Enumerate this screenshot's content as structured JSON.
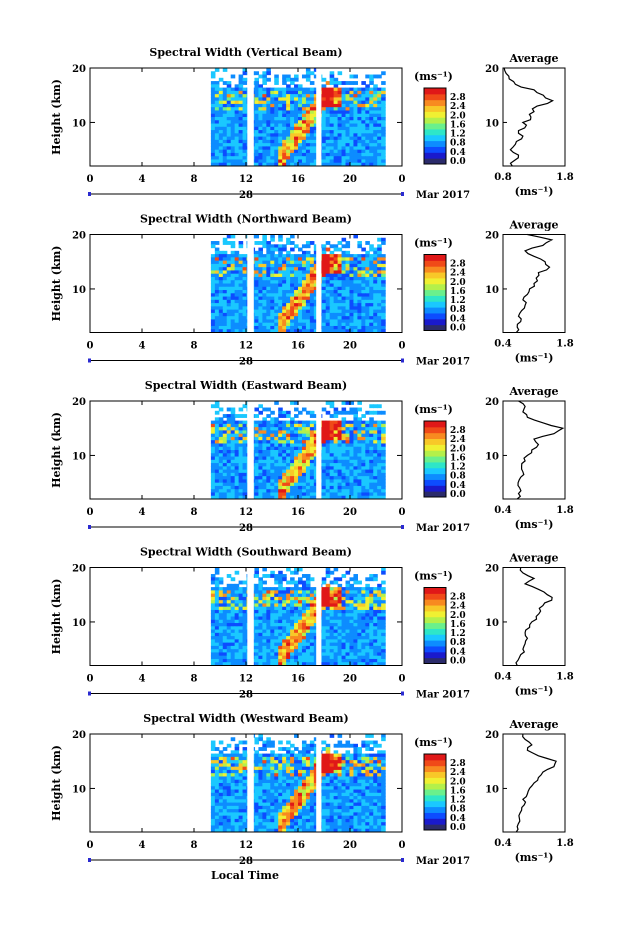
{
  "chart_data": {
    "type": "heatmap",
    "date_label": "Mar 2017",
    "xlabel": "Local Time",
    "day_label": "28",
    "x_ticks": [
      "0",
      "4",
      "8",
      "12",
      "16",
      "20",
      "0"
    ],
    "x_range_hours": [
      0,
      24
    ],
    "data_start_hour": 9.3,
    "data_end_hour": 22.7,
    "gaps_hours": [
      [
        12.1,
        12.6
      ],
      [
        17.4,
        17.8
      ]
    ],
    "ylabel": "Height (km)",
    "y_ticks": [
      "20",
      "10"
    ],
    "y_range_km": [
      2,
      20
    ],
    "colorbar": {
      "unit": "(ms⁻¹)",
      "ticks": [
        "2.8",
        "2.4",
        "2.0",
        "1.6",
        "1.2",
        "0.8",
        "0.4",
        "0.0"
      ],
      "range": [
        0.0,
        2.8
      ],
      "colors": [
        "#2b2b6b",
        "#1a1acc",
        "#0d4cff",
        "#0d8cff",
        "#1ac8ff",
        "#2ee6c8",
        "#6af08c",
        "#b4f04a",
        "#f0f032",
        "#f8c828",
        "#f88a20",
        "#f04a18",
        "#e01818"
      ]
    },
    "profile_title": "Average",
    "profile_xlabel": "(ms⁻¹)",
    "panels": [
      {
        "title": "Spectral Width (Vertical Beam)",
        "profile_xticks": [
          "0.8",
          "1.8"
        ],
        "profile_xrange": [
          0.8,
          1.8
        ],
        "profile": [
          [
            2,
            0.95
          ],
          [
            3,
            0.98
          ],
          [
            4,
            1.05
          ],
          [
            5,
            0.92
          ],
          [
            6,
            1.0
          ],
          [
            7,
            1.1
          ],
          [
            8,
            1.05
          ],
          [
            9,
            1.15
          ],
          [
            10,
            1.12
          ],
          [
            11,
            1.25
          ],
          [
            12,
            1.3
          ],
          [
            13,
            1.35
          ],
          [
            14,
            1.6
          ],
          [
            15,
            1.45
          ],
          [
            16,
            1.3
          ],
          [
            17,
            1.0
          ],
          [
            18,
            0.9
          ],
          [
            19,
            0.85
          ],
          [
            20,
            0.82
          ]
        ]
      },
      {
        "title": "Spectral Width (Northward Beam)",
        "profile_xticks": [
          "0.4",
          "1.8"
        ],
        "profile_xrange": [
          0.4,
          1.8
        ],
        "profile": [
          [
            2,
            0.7
          ],
          [
            3,
            0.72
          ],
          [
            4,
            0.8
          ],
          [
            5,
            0.75
          ],
          [
            6,
            0.82
          ],
          [
            7,
            0.9
          ],
          [
            8,
            0.85
          ],
          [
            9,
            0.95
          ],
          [
            10,
            1.0
          ],
          [
            11,
            1.1
          ],
          [
            12,
            1.15
          ],
          [
            13,
            1.2
          ],
          [
            14,
            1.45
          ],
          [
            15,
            1.35
          ],
          [
            16,
            1.1
          ],
          [
            17,
            0.9
          ],
          [
            18,
            1.3
          ],
          [
            19,
            1.5
          ],
          [
            20,
            0.95
          ]
        ]
      },
      {
        "title": "Spectral Width (Eastward Beam)",
        "profile_xticks": [
          "0.4",
          "1.8"
        ],
        "profile_xrange": [
          0.4,
          1.8
        ],
        "profile": [
          [
            2,
            0.72
          ],
          [
            3,
            0.75
          ],
          [
            4,
            0.78
          ],
          [
            5,
            0.74
          ],
          [
            6,
            0.8
          ],
          [
            7,
            0.85
          ],
          [
            8,
            0.82
          ],
          [
            9,
            0.9
          ],
          [
            10,
            0.95
          ],
          [
            11,
            1.05
          ],
          [
            12,
            1.2
          ],
          [
            13,
            1.1
          ],
          [
            14,
            1.55
          ],
          [
            15,
            1.75
          ],
          [
            16,
            1.3
          ],
          [
            17,
            0.95
          ],
          [
            18,
            0.85
          ],
          [
            19,
            0.9
          ],
          [
            20,
            0.75
          ]
        ]
      },
      {
        "title": "Spectral Width (Southward Beam)",
        "profile_xticks": [
          "0.4",
          "1.8"
        ],
        "profile_xrange": [
          0.4,
          1.8
        ],
        "profile": [
          [
            2,
            0.72
          ],
          [
            3,
            0.74
          ],
          [
            4,
            0.8
          ],
          [
            5,
            0.85
          ],
          [
            6,
            0.9
          ],
          [
            7,
            0.95
          ],
          [
            8,
            0.9
          ],
          [
            9,
            1.0
          ],
          [
            10,
            1.05
          ],
          [
            11,
            1.15
          ],
          [
            12,
            1.25
          ],
          [
            13,
            1.3
          ],
          [
            14,
            1.5
          ],
          [
            15,
            1.4
          ],
          [
            16,
            1.2
          ],
          [
            17,
            0.9
          ],
          [
            18,
            1.1
          ],
          [
            19,
            0.85
          ],
          [
            20,
            0.8
          ]
        ]
      },
      {
        "title": "Spectral Width (Westward Beam)",
        "profile_xticks": [
          "0.4",
          "1.8"
        ],
        "profile_xrange": [
          0.4,
          1.8
        ],
        "profile": [
          [
            2,
            0.7
          ],
          [
            3,
            0.72
          ],
          [
            4,
            0.78
          ],
          [
            5,
            0.76
          ],
          [
            6,
            0.82
          ],
          [
            7,
            0.88
          ],
          [
            8,
            0.85
          ],
          [
            9,
            0.95
          ],
          [
            10,
            1.0
          ],
          [
            11,
            1.1
          ],
          [
            12,
            1.2
          ],
          [
            13,
            1.3
          ],
          [
            14,
            1.55
          ],
          [
            15,
            1.6
          ],
          [
            16,
            1.2
          ],
          [
            17,
            0.95
          ],
          [
            18,
            1.05
          ],
          [
            19,
            0.9
          ],
          [
            20,
            0.85
          ]
        ]
      }
    ]
  }
}
